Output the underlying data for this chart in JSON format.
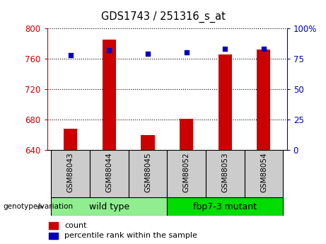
{
  "title": "GDS1743 / 251316_s_at",
  "samples": [
    "GSM88043",
    "GSM88044",
    "GSM88045",
    "GSM88052",
    "GSM88053",
    "GSM88054"
  ],
  "count_values": [
    668,
    785,
    660,
    681,
    765,
    772
  ],
  "percentile_values": [
    78,
    82,
    79,
    80,
    83,
    83
  ],
  "ylim_left": [
    640,
    800
  ],
  "ylim_right": [
    0,
    100
  ],
  "yticks_left": [
    640,
    680,
    720,
    760,
    800
  ],
  "yticks_right": [
    0,
    25,
    50,
    75,
    100
  ],
  "groups": [
    {
      "label": "wild type",
      "samples": [
        0,
        1,
        2
      ],
      "color": "#90ee90"
    },
    {
      "label": "fbp7-3 mutant",
      "samples": [
        3,
        4,
        5
      ],
      "color": "#00dd00"
    }
  ],
  "group_label": "genotype/variation",
  "bar_color": "#cc0000",
  "dot_color": "#0000bb",
  "bar_width": 0.35,
  "left_axis_color": "#cc0000",
  "right_axis_color": "#0000bb",
  "tick_label_area_color": "#cccccc",
  "legend_count_label": "count",
  "legend_percentile_label": "percentile rank within the sample"
}
